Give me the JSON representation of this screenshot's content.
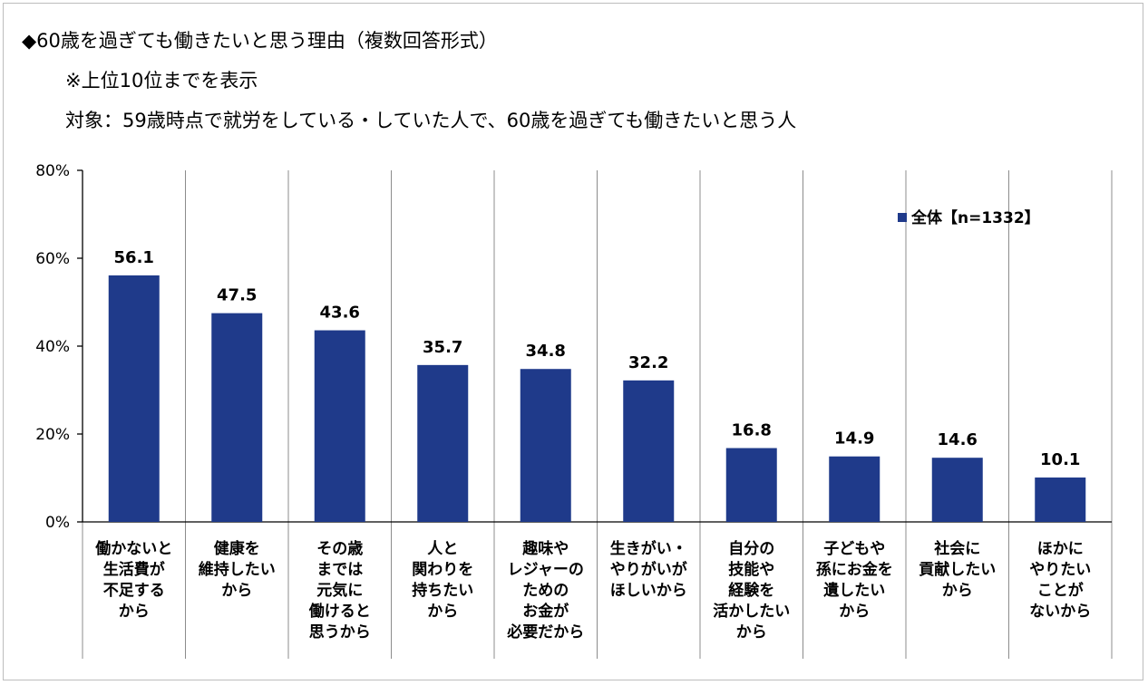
{
  "header": {
    "title": "◆60歳を過ぎても働きたいと思う理由（複数回答形式）",
    "note": "※上位10位までを表示",
    "subject": "対象：59歳時点で就労をしている・していた人で、60歳を過ぎても働きたいと思う人"
  },
  "chart_data": {
    "type": "bar",
    "categories": [
      [
        "働かないと",
        "生活費が",
        "不足する",
        "から"
      ],
      [
        "健康を",
        "維持したい",
        "から"
      ],
      [
        "その歳",
        "までは",
        "元気に",
        "働けると",
        "思うから"
      ],
      [
        "人と",
        "関わりを",
        "持ちたい",
        "から"
      ],
      [
        "趣味や",
        "レジャーの",
        "ための",
        "お金が",
        "必要だから"
      ],
      [
        "生きがい・",
        "やりがいが",
        "ほしいから"
      ],
      [
        "自分の",
        "技能や",
        "経験を",
        "活かしたい",
        "から"
      ],
      [
        "子どもや",
        "孫にお金を",
        "遺したい",
        "から"
      ],
      [
        "社会に",
        "貢献したい",
        "から"
      ],
      [
        "ほかに",
        "やりたい",
        "ことが",
        "ないから"
      ]
    ],
    "series": [
      {
        "name": "全体【n=1332】",
        "values": [
          56.1,
          47.5,
          43.6,
          35.7,
          34.8,
          32.2,
          16.8,
          14.9,
          14.6,
          10.1
        ]
      }
    ],
    "value_labels": [
      "56.1",
      "47.5",
      "43.6",
      "35.7",
      "34.8",
      "32.2",
      "16.8",
      "14.9",
      "14.6",
      "10.1"
    ],
    "y_ticks": [
      "0%",
      "20%",
      "40%",
      "60%",
      "80%"
    ],
    "ylim": [
      0,
      80
    ],
    "grid": "vertical separators",
    "legend_position": "top-right",
    "bar_color": "#1f3a8a"
  }
}
